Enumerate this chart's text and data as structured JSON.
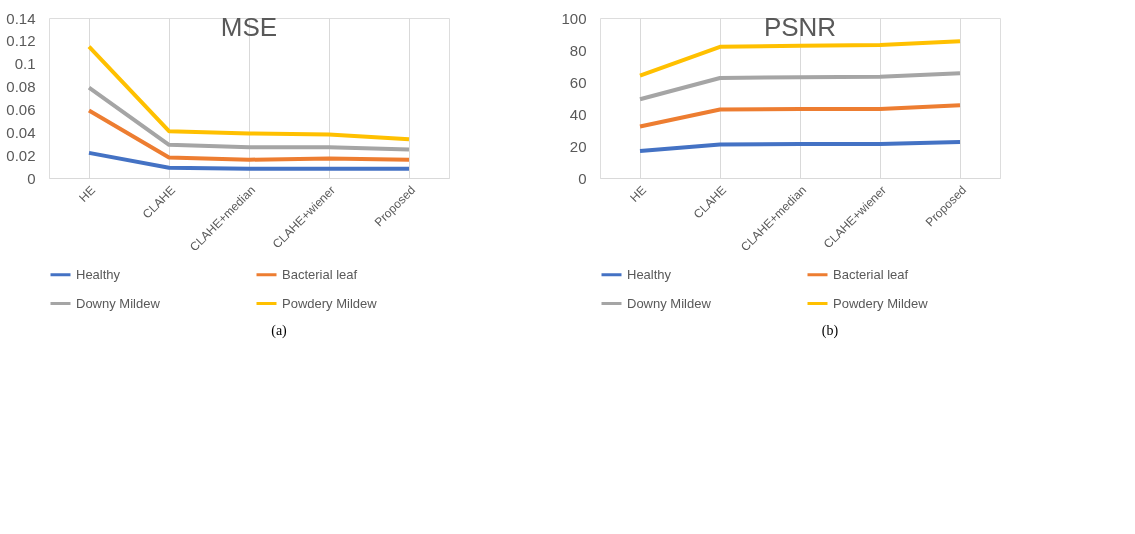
{
  "chart_data": [
    {
      "type": "line",
      "title": "MSE",
      "categories": [
        "HE",
        "CLAHE",
        "CLAHE+median",
        "CLAHE+wiener",
        "Proposed"
      ],
      "ylim": [
        0,
        0.14
      ],
      "yticks": [
        {
          "value": 0,
          "label": "0"
        },
        0.02,
        0.04,
        0.06,
        0.08,
        {
          "value": 0.1,
          "label": "0.1"
        },
        0.12,
        0.14
      ],
      "grid": "x",
      "legend": "bottom",
      "line_style": "solid",
      "marker": "none",
      "annotations": [
        "(a)"
      ],
      "series": [
        {
          "name": "Healthy",
          "color": "#4472c4",
          "values": [
            0.022,
            0.009,
            0.008,
            0.008,
            0.008
          ]
        },
        {
          "name": "Bacterial leaf",
          "color": "#ed7d31",
          "values": [
            0.059,
            0.018,
            0.016,
            0.017,
            0.016
          ]
        },
        {
          "name": "Downy Mildew",
          "color": "#a5a5a5",
          "values": [
            0.079,
            0.029,
            0.027,
            0.027,
            0.025
          ]
        },
        {
          "name": "Powdery Mildew",
          "color": "#ffc000",
          "values": [
            0.115,
            0.041,
            0.039,
            0.038,
            0.034
          ]
        }
      ]
    },
    {
      "type": "line",
      "title": "PSNR",
      "categories": [
        "HE",
        "CLAHE",
        "CLAHE+median",
        "CLAHE+wiener",
        "Proposed"
      ],
      "ylim": [
        0,
        100
      ],
      "yticks": [
        0,
        20,
        40,
        60,
        80,
        100
      ],
      "grid": "x",
      "legend": "bottom",
      "line_style": "solid",
      "marker": "none",
      "annotations": [
        "(b)"
      ],
      "series": [
        {
          "name": "Healthy",
          "color": "#4472c4",
          "values": [
            16.9,
            20.9,
            21.3,
            21.3,
            22.5
          ]
        },
        {
          "name": "Bacterial leaf",
          "color": "#ed7d31",
          "values": [
            32.2,
            42.8,
            43.2,
            43.2,
            45.4
          ]
        },
        {
          "name": "Downy Mildew",
          "color": "#a5a5a5",
          "values": [
            49.2,
            62.5,
            63.0,
            63.3,
            65.4
          ]
        },
        {
          "name": "Powdery Mildew",
          "color": "#ffc000",
          "values": [
            64.0,
            82.0,
            82.7,
            83.2,
            85.4
          ]
        }
      ]
    }
  ]
}
